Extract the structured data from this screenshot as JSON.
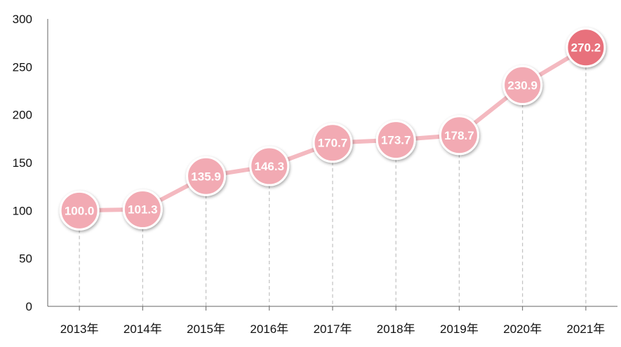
{
  "chart_data": {
    "type": "line",
    "title": "",
    "xlabel": "",
    "ylabel": "",
    "categories": [
      "2013年",
      "2014年",
      "2015年",
      "2016年",
      "2017年",
      "2018年",
      "2019年",
      "2020年",
      "2021年"
    ],
    "series": [
      {
        "values": [
          100.0,
          101.3,
          135.9,
          146.3,
          170.7,
          173.7,
          178.7,
          230.9,
          270.2
        ]
      }
    ],
    "data_labels": [
      "100.0",
      "101.3",
      "135.9",
      "146.3",
      "170.7",
      "173.7",
      "178.7",
      "230.9",
      "270.2"
    ],
    "ylim": [
      0,
      300
    ],
    "yticks": [
      0,
      50,
      100,
      150,
      200,
      250,
      300
    ],
    "grid": false,
    "drop_lines": true,
    "colors": {
      "line": "#f4b9c0",
      "marker": "#f2aab3",
      "marker_highlight": "#e8717c",
      "marker_border": "#ffffff",
      "drop_line": "#c0c0c0",
      "axis": "#666666"
    }
  }
}
